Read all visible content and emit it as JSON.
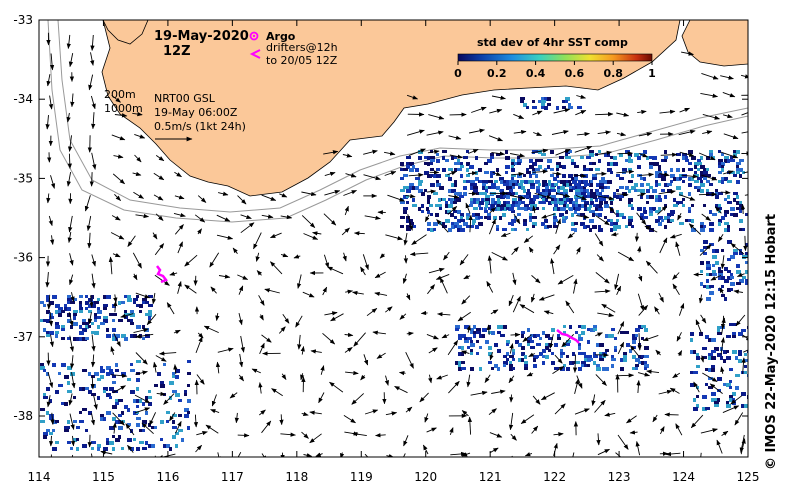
{
  "map": {
    "date_title": "19-May-2020",
    "time_title": "12Z",
    "legend": {
      "argo_label": "Argo",
      "drifter_label_1": "drifters@12h",
      "drifter_label_2": "to 20/05 12Z",
      "argo_color": "#ff00ff",
      "drifter_color": "#ff00ff"
    },
    "info": {
      "isobath_1": "200m",
      "isobath_2": "1000m",
      "product": "NRT00 GSL",
      "product_time": "19-May 06:00Z",
      "scale_label": "0.5m/s (1kt 24h)"
    },
    "colorbar": {
      "title": "std dev of 4hr SST comp",
      "ticks": [
        "0",
        "0.2",
        "0.4",
        "0.6",
        "0.8",
        "1"
      ],
      "colors": [
        "#08085e",
        "#0d3fa8",
        "#1f8ee0",
        "#38d0c0",
        "#8ee05a",
        "#f0e030",
        "#f59a20",
        "#c83010",
        "#6a0a00"
      ]
    },
    "x_ticks": [
      "114",
      "115",
      "116",
      "117",
      "118",
      "119",
      "120",
      "121",
      "122",
      "123",
      "124",
      "125"
    ],
    "y_ticks": [
      "-33",
      "-34",
      "-35",
      "-36",
      "-37",
      "-38"
    ],
    "credit": "© IMOS 22-May-2020 12:15 Hobart",
    "land_color": "#fbc899",
    "sst_colors": [
      "#0a1a8a",
      "#1438b4",
      "#0a0a60",
      "#2a6ad0",
      "#30a0c8"
    ]
  }
}
